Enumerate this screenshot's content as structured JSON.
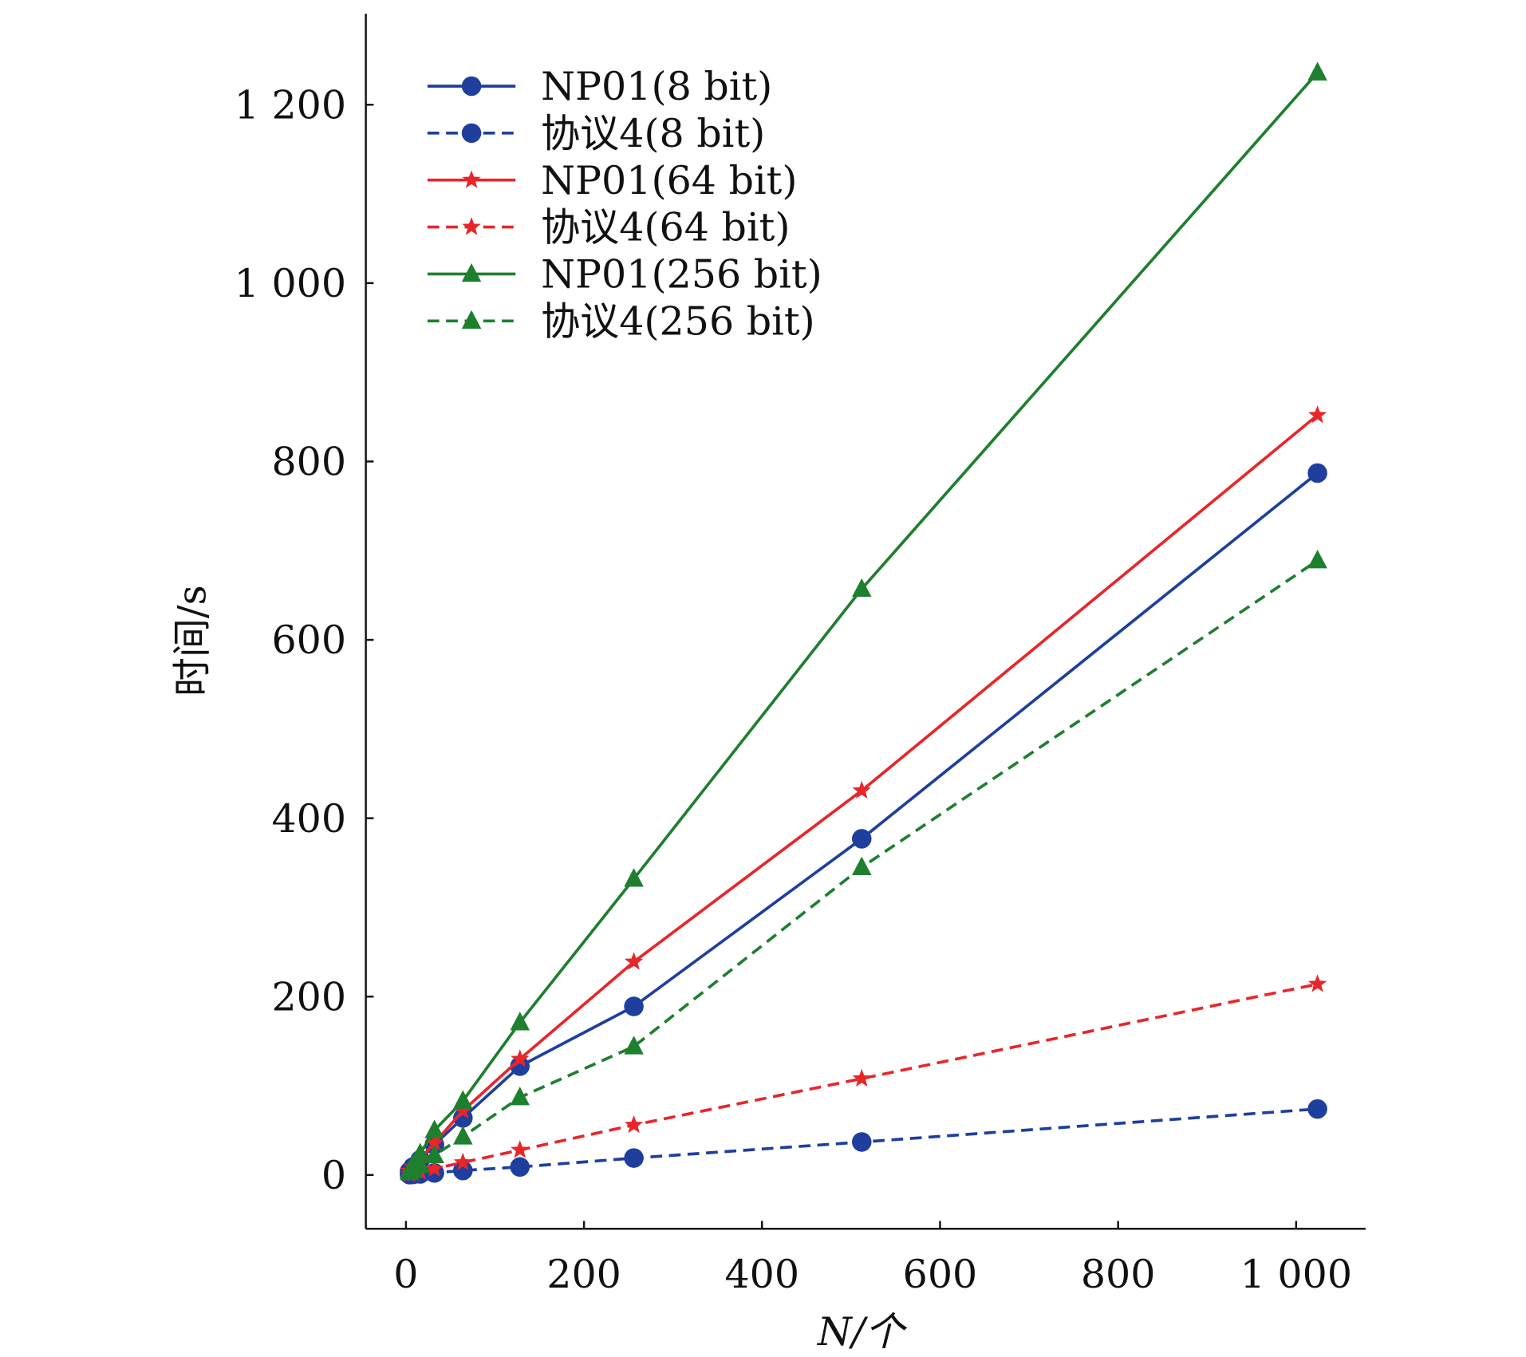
{
  "chart_data": {
    "type": "line",
    "title": "",
    "xlabel": "N/个",
    "ylabel": "时间/s",
    "xlim": [
      -40,
      1080
    ],
    "ylim": [
      -60,
      1300
    ],
    "xticks": [
      0,
      200,
      400,
      600,
      800,
      1000
    ],
    "xtick_labels": [
      "0",
      "200",
      "400",
      "600",
      "800",
      "1 000"
    ],
    "yticks": [
      0,
      200,
      400,
      600,
      800,
      1000,
      1200
    ],
    "ytick_labels": [
      "0",
      "200",
      "400",
      "600",
      "800",
      "1 000",
      "1 200"
    ],
    "grid": false,
    "legend_position": "top-left",
    "x": [
      4,
      8,
      16,
      32,
      64,
      128,
      256,
      512,
      1024
    ],
    "series": [
      {
        "name": "NP01(8 bit)",
        "color": "#1f3f9f",
        "dash": "solid",
        "marker": "circle",
        "values": [
          4,
          9,
          17,
          34,
          64,
          122,
          189,
          377,
          787
        ]
      },
      {
        "name": "协议4(8 bit)",
        "color": "#1f3f9f",
        "dash": "dashed",
        "marker": "circle",
        "values": [
          0.4,
          0.6,
          1.2,
          2.3,
          5,
          9,
          19,
          37,
          74
        ]
      },
      {
        "name": "NP01(64 bit)",
        "color": "#e8262a",
        "dash": "solid",
        "marker": "star",
        "values": [
          4.5,
          9,
          18,
          36,
          72,
          130,
          239,
          431,
          852
        ]
      },
      {
        "name": "协议4(64 bit)",
        "color": "#e8262a",
        "dash": "dashed",
        "marker": "star",
        "values": [
          1,
          2,
          3.5,
          7,
          14,
          28,
          56,
          108,
          214
        ]
      },
      {
        "name": "NP01(256 bit)",
        "color": "#1e7f2e",
        "dash": "solid",
        "marker": "triangle",
        "values": [
          5,
          11,
          24,
          50,
          83,
          171,
          332,
          657,
          1236
        ]
      },
      {
        "name": "协议4(256 bit)",
        "color": "#1e7f2e",
        "dash": "dashed",
        "marker": "triangle",
        "values": [
          3,
          5,
          11,
          22,
          43,
          87,
          144,
          345,
          689
        ]
      }
    ]
  }
}
